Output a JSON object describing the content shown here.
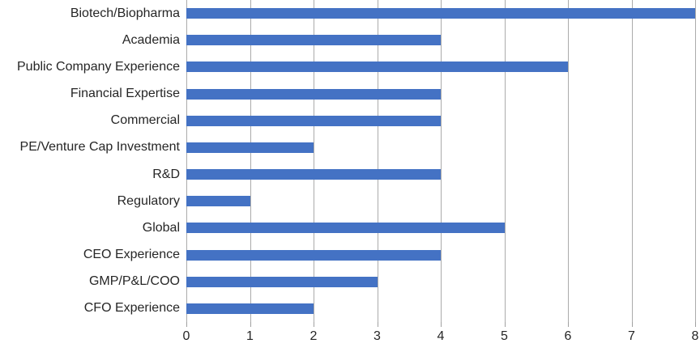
{
  "chart_data": {
    "type": "bar",
    "orientation": "horizontal",
    "title": "",
    "xlabel": "",
    "ylabel": "",
    "categories": [
      "Biotech/Biopharma",
      "Academia",
      "Public Company Experience",
      "Financial Expertise",
      "Commercial",
      "PE/Venture Cap Investment",
      "R&D",
      "Regulatory",
      "Global",
      "CEO Experience",
      "GMP/P&L/COO",
      "CFO Experience"
    ],
    "values": [
      8,
      4,
      6,
      4,
      4,
      2,
      4,
      1,
      5,
      4,
      3,
      2
    ],
    "xlim": [
      0,
      8
    ],
    "x_ticks": [
      0,
      1,
      2,
      3,
      4,
      5,
      6,
      7,
      8
    ],
    "grid": true,
    "legend": false,
    "colors": {
      "bar": "#4472c4",
      "gridline": "#ababab",
      "tick": "#a0a0a0",
      "text": "#262626",
      "background": "#ffffff"
    }
  }
}
